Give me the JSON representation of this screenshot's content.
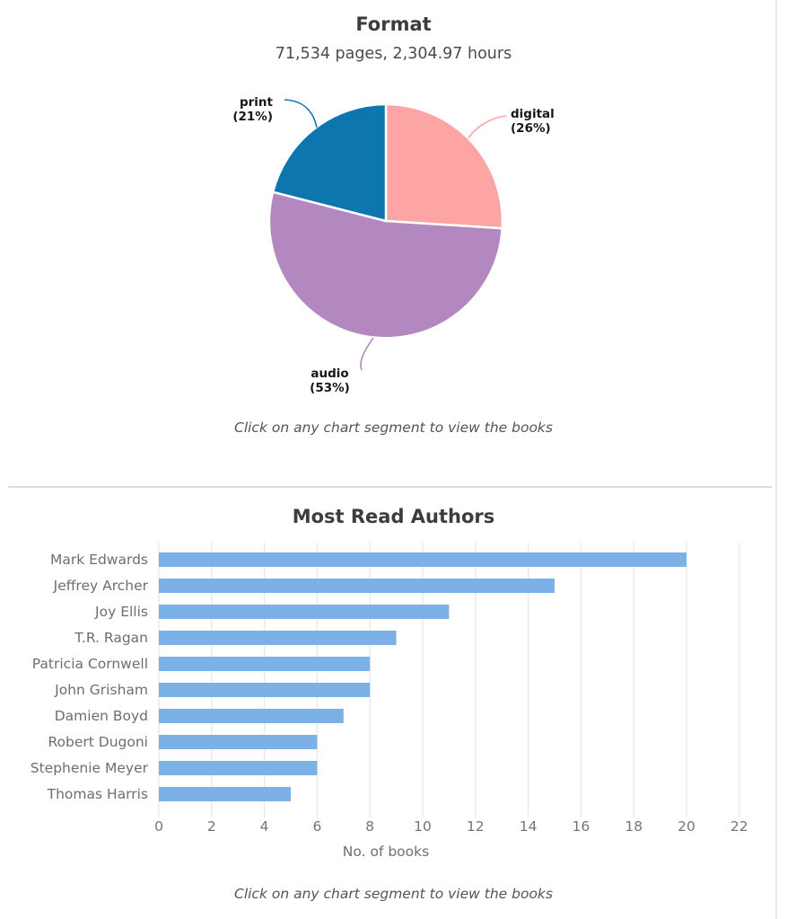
{
  "pie_section": {
    "title": "Format",
    "subtitle": "71,534 pages, 2,304.97 hours",
    "caption": "Click on any chart segment to view the books"
  },
  "bar_section": {
    "title": "Most Read Authors",
    "xlabel": "No. of books",
    "caption": "Click on any chart segment to view the books"
  },
  "colors": {
    "pie_digital": "#fda5a4",
    "pie_audio": "#b388c1",
    "pie_print": "#0e76ae",
    "bar_fill": "#7cb1e8",
    "gridline": "#e9e9e9",
    "axis_text": "#6e6e6e",
    "tick_text": "#757575",
    "title_text": "#3d3d3d"
  },
  "chart_data": [
    {
      "type": "pie",
      "title": "Format",
      "subtitle": "71,534 pages, 2,304.97 hours",
      "start_angle_deg": 0,
      "direction": "clockwise",
      "slices": [
        {
          "label": "digital",
          "percent": 26,
          "percent_label": "(26%)",
          "color": "#fda5a4"
        },
        {
          "label": "audio",
          "percent": 53,
          "percent_label": "(53%)",
          "color": "#b388c1"
        },
        {
          "label": "print",
          "percent": 21,
          "percent_label": "(21%)",
          "color": "#0e76ae"
        }
      ]
    },
    {
      "type": "bar",
      "orientation": "horizontal",
      "title": "Most Read Authors",
      "categories": [
        "Mark Edwards",
        "Jeffrey Archer",
        "Joy Ellis",
        "T.R. Ragan",
        "Patricia Cornwell",
        "John Grisham",
        "Damien Boyd",
        "Robert Dugoni",
        "Stephenie Meyer",
        "Thomas Harris"
      ],
      "values": [
        20,
        15,
        11,
        9,
        8,
        8,
        7,
        6,
        6,
        5
      ],
      "xlabel": "No. of books",
      "xlim": [
        0,
        22
      ],
      "xticks": [
        0,
        2,
        4,
        6,
        8,
        10,
        12,
        14,
        16,
        18,
        20,
        22
      ],
      "bar_color": "#7cb1e8",
      "grid": true,
      "legend": false
    }
  ]
}
